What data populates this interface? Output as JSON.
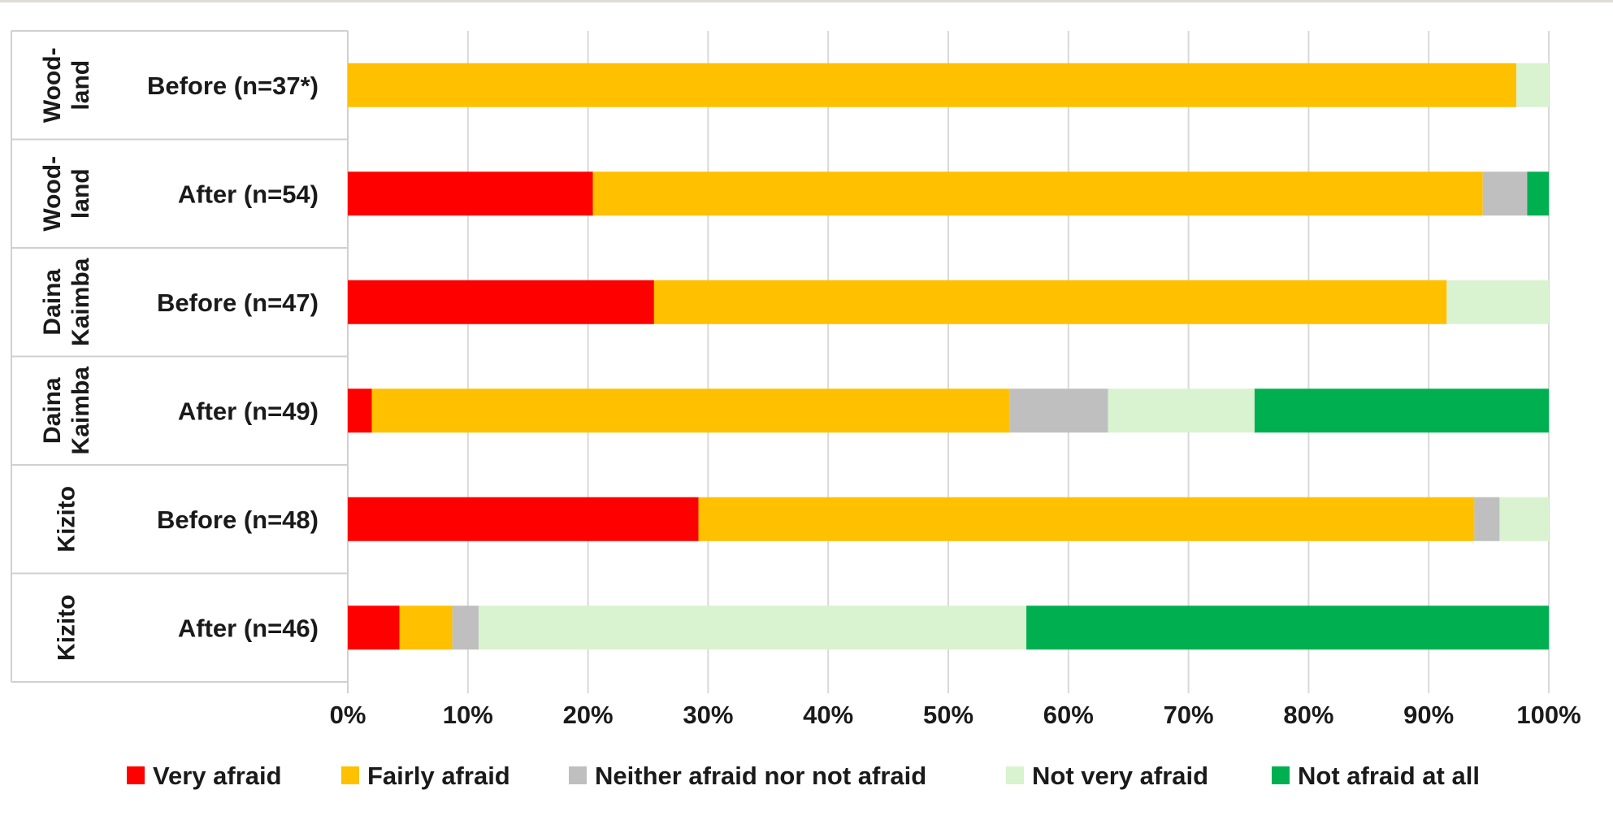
{
  "chart_data": {
    "type": "bar",
    "orientation": "horizontal",
    "stacked": "percent",
    "categories": [
      {
        "group": "Wood-\nland",
        "label": "Before (n=37*)"
      },
      {
        "group": "Wood-\nland",
        "label": "After (n=54)"
      },
      {
        "group": "Daina\nKaimba",
        "label": "Before (n=47)"
      },
      {
        "group": "Daina\nKaimba",
        "label": "After (n=49)"
      },
      {
        "group": "Kizito",
        "label": "Before (n=48)"
      },
      {
        "group": "Kizito",
        "label": "After (n=46)"
      }
    ],
    "series": [
      {
        "name": "Very afraid",
        "color": "#ff0000",
        "values": [
          0,
          20.4,
          25.5,
          2.0,
          29.2,
          4.3
        ]
      },
      {
        "name": "Fairly afraid",
        "color": "#ffc000",
        "values": [
          97.3,
          74.1,
          66.0,
          53.1,
          64.6,
          4.4
        ]
      },
      {
        "name": "Neither afraid nor not afraid",
        "color": "#bfbfbf",
        "values": [
          0,
          3.7,
          0,
          8.2,
          2.1,
          2.2
        ]
      },
      {
        "name": "Not very afraid",
        "color": "#d9f2d0",
        "values": [
          2.7,
          0,
          8.5,
          12.2,
          4.1,
          45.6
        ]
      },
      {
        "name": "Not afraid at all",
        "color": "#00b050",
        "values": [
          0,
          1.8,
          0,
          24.5,
          0,
          43.5
        ]
      }
    ],
    "x_ticks": [
      "0%",
      "10%",
      "20%",
      "30%",
      "40%",
      "50%",
      "60%",
      "70%",
      "80%",
      "90%",
      "100%"
    ],
    "xlim": [
      0,
      100
    ],
    "grid": true,
    "legend_position": "bottom"
  }
}
